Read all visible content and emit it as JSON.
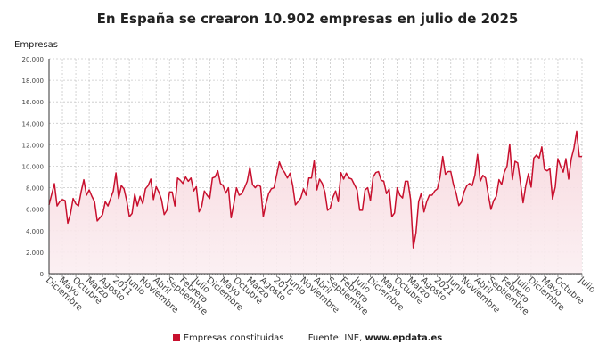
{
  "chart_data": {
    "type": "area",
    "title": "En España se crearon 10.902 empresas en julio de 2025",
    "ylabel": "Empresas",
    "xlabel": "",
    "x_start": "2008-12",
    "x_end": "2025-07",
    "frequency": "monthly",
    "ylim": [
      0,
      20000
    ],
    "y_ticks": [
      0,
      2000,
      4000,
      6000,
      8000,
      10000,
      12000,
      14000,
      16000,
      18000,
      20000
    ],
    "y_tick_labels": [
      "0",
      "2.000",
      "4.000",
      "6.000",
      "8.000",
      "10.000",
      "12.000",
      "14.000",
      "16.000",
      "18.000",
      "20.000"
    ],
    "x_tick_labels": [
      "Diciembre",
      "Mayo",
      "Octubre",
      "Marzo",
      "Agosto",
      "2011",
      "Junio",
      "Noviembre",
      "Abril",
      "Septiembre",
      "Febrero",
      "Julio",
      "Diciembre",
      "Mayo",
      "Octubre",
      "Marzo",
      "Agosto",
      "2016",
      "Junio",
      "Noviembre",
      "Abril",
      "Septiembre",
      "Febrero",
      "Julio",
      "Diciembre",
      "Mayo",
      "Octubre",
      "Marzo",
      "Agosto",
      "2021",
      "Junio",
      "Noviembre",
      "Abril",
      "Septiembre",
      "Febrero",
      "Julio",
      "Diciembre",
      "Mayo",
      "Octubre",
      "Julio"
    ],
    "grid": true,
    "legend_position": "bottom",
    "series": [
      {
        "name": "Empresas constituidas",
        "color": "#c8102e",
        "values": [
          6400,
          7400,
          8380,
          6300,
          6700,
          6900,
          6800,
          4700,
          5560,
          7000,
          6500,
          6300,
          7640,
          8740,
          7300,
          7800,
          7200,
          6700,
          4900,
          5200,
          5500,
          6700,
          6300,
          7000,
          7700,
          9380,
          7000,
          8200,
          7900,
          6800,
          5300,
          5600,
          7400,
          6300,
          7200,
          6500,
          7900,
          8200,
          8800,
          6900,
          8100,
          7600,
          6900,
          5500,
          5900,
          7600,
          7600,
          6300,
          8900,
          8700,
          8400,
          9000,
          8600,
          8900,
          7700,
          8100,
          5750,
          6250,
          7700,
          7300,
          7000,
          8900,
          9000,
          9570,
          8400,
          8200,
          7500,
          8000,
          5200,
          6500,
          8000,
          7300,
          7450,
          8000,
          8600,
          9900,
          8300,
          8000,
          8300,
          8100,
          5300,
          6500,
          7450,
          7900,
          8000,
          9200,
          10400,
          9750,
          9400,
          8900,
          9350,
          8200,
          6400,
          6700,
          7050,
          7900,
          7300,
          8900,
          8900,
          10500,
          7800,
          8800,
          8400,
          7600,
          5900,
          6100,
          7100,
          7700,
          6700,
          9400,
          8800,
          9350,
          8900,
          8800,
          8300,
          7800,
          5900,
          5900,
          7800,
          8000,
          6800,
          9000,
          9400,
          9500,
          8700,
          8600,
          7450,
          7900,
          5300,
          5650,
          8000,
          7300,
          7050,
          8600,
          8600,
          6900,
          2400,
          3800,
          6700,
          7500,
          5750,
          6700,
          7300,
          7300,
          7700,
          7900,
          9000,
          10900,
          9250,
          9500,
          9500,
          8300,
          7500,
          6330,
          6660,
          7640,
          8190,
          8400,
          8200,
          9150,
          11100,
          8600,
          9150,
          8900,
          7360,
          5980,
          6800,
          7200,
          8750,
          8300,
          9450,
          10000,
          12060,
          8750,
          10460,
          10300,
          8500,
          6600,
          8200,
          9300,
          8060,
          10760,
          11040,
          10760,
          11800,
          9710,
          9570,
          9760,
          6950,
          8060,
          10700,
          10000,
          9450,
          10700,
          8800,
          10700,
          11700,
          13250,
          10900,
          10902
        ]
      }
    ]
  },
  "legend": {
    "series_label": "Empresas constituidas",
    "source_prefix": "Fuente: INE, ",
    "source_site": "www.epdata.es"
  }
}
